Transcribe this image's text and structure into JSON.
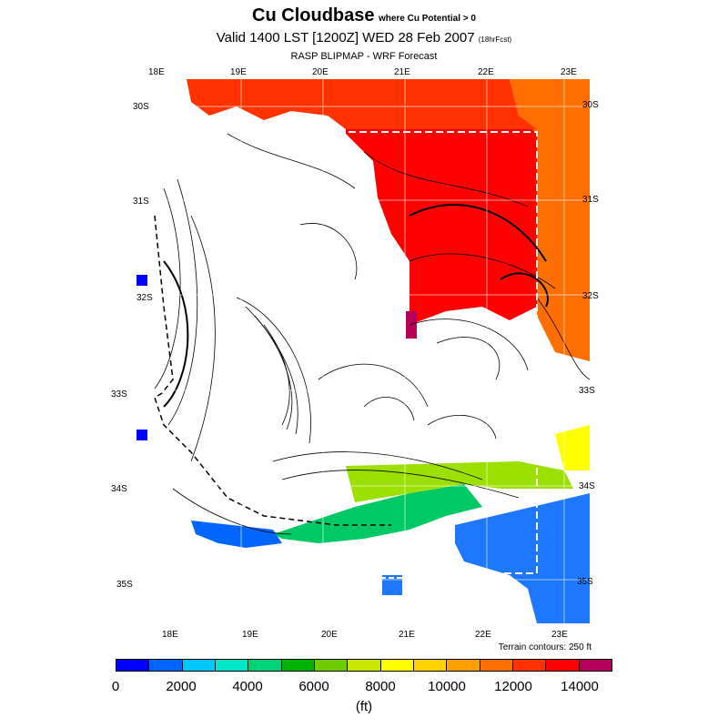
{
  "title": {
    "main": "Cu Cloudbase",
    "qualifier": "where Cu Potential > 0",
    "valid": "Valid 1400 LST [1200Z] WED 28 Feb 2007",
    "forecast_hours": "(18hrFcst)",
    "source": "RASP BLIPMAP - WRF Forecast"
  },
  "axes": {
    "lon_top": [
      "18E",
      "19E",
      "20E",
      "21E",
      "22E",
      "23E"
    ],
    "lon_bottom": [
      "18E",
      "19E",
      "20E",
      "21E",
      "22E",
      "23E"
    ],
    "lat_left": [
      "30S",
      "31S",
      "32S",
      "33S",
      "34S",
      "35S"
    ],
    "lat_right": [
      "30S",
      "31S",
      "32S",
      "33S",
      "34S",
      "35S"
    ]
  },
  "terrain_note": "Terrain contours: 250 ft",
  "colorbar": {
    "colors": [
      "#0000ff",
      "#0066ff",
      "#00c8ff",
      "#00e6c8",
      "#00d27a",
      "#00b400",
      "#6ecc00",
      "#c8e600",
      "#ffff00",
      "#ffd200",
      "#ffa000",
      "#ff6e00",
      "#ff3200",
      "#ff0000",
      "#b4005a"
    ],
    "ticks": [
      "0",
      "2000",
      "4000",
      "6000",
      "8000",
      "10000",
      "12000",
      "14000"
    ],
    "unit": "(ft)"
  },
  "map_colors": {
    "land_outline": "#000000",
    "blue": "#1e78ff",
    "darkblue": "#0000ff",
    "green": "#00c864",
    "lime": "#9be000",
    "yellow": "#ffff00",
    "red": "#ff0000",
    "orange_red": "#ff3200",
    "orange": "#ff6e00",
    "magenta": "#b4005a"
  }
}
